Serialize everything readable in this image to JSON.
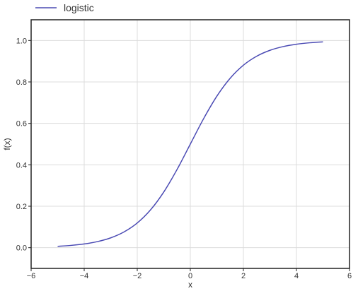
{
  "chart_data": {
    "type": "line",
    "legend": {
      "position": "top-left",
      "entries": [
        "logistic"
      ]
    },
    "xlabel": "x",
    "ylabel": "f(x)",
    "xlim": [
      -6,
      6
    ],
    "ylim": [
      -0.1,
      1.1
    ],
    "x_ticks": [
      -6,
      -4,
      -2,
      0,
      2,
      4,
      6
    ],
    "x_tick_labels": [
      "−6",
      "−4",
      "−2",
      "0",
      "2",
      "4",
      "6"
    ],
    "y_ticks": [
      0.0,
      0.2,
      0.4,
      0.6,
      0.8,
      1.0
    ],
    "y_tick_labels": [
      "0.0",
      "0.2",
      "0.4",
      "0.6",
      "0.8",
      "1.0"
    ],
    "grid": true,
    "series": [
      {
        "name": "logistic",
        "color": "#4b4bb4",
        "x": [
          -5,
          -4.5,
          -4,
          -3.5,
          -3,
          -2.5,
          -2,
          -1.5,
          -1,
          -0.5,
          0,
          0.5,
          1,
          1.5,
          2,
          2.5,
          3,
          3.5,
          4,
          4.5,
          5
        ],
        "y": [
          0.0067,
          0.011,
          0.018,
          0.0293,
          0.0474,
          0.0759,
          0.1192,
          0.1824,
          0.2689,
          0.3775,
          0.5,
          0.6225,
          0.7311,
          0.8176,
          0.8808,
          0.9241,
          0.9526,
          0.9707,
          0.982,
          0.989,
          0.9933
        ]
      }
    ]
  }
}
